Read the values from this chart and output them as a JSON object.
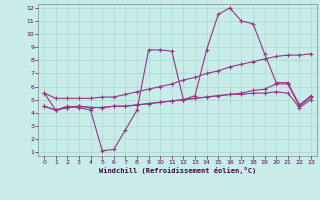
{
  "x_min": 0,
  "x_max": 23,
  "y_min": 1,
  "y_max": 12,
  "background_color": "#c8ece8",
  "grid_color": "#a8d8d0",
  "line_color": "#993388",
  "xlabel": "Windchill (Refroidissement éolien,°C)",
  "lines": [
    {
      "x": [
        0,
        1,
        2,
        3,
        4,
        5,
        6,
        7,
        8,
        9,
        10,
        11,
        12,
        13,
        14,
        15,
        16,
        17,
        18,
        19,
        20,
        21,
        22,
        23
      ],
      "y": [
        5.5,
        4.2,
        4.5,
        4.4,
        4.2,
        1.1,
        1.2,
        2.7,
        4.2,
        8.8,
        8.8,
        8.7,
        5.0,
        5.3,
        8.8,
        11.5,
        12.0,
        11.0,
        10.8,
        8.5,
        6.3,
        6.3,
        4.6,
        5.3
      ]
    },
    {
      "x": [
        0,
        1,
        2,
        3,
        4,
        5,
        6,
        7,
        8,
        9,
        10,
        11,
        12,
        13,
        14,
        15,
        16,
        17,
        18,
        19,
        20,
        21,
        22,
        23
      ],
      "y": [
        5.5,
        5.1,
        5.1,
        5.1,
        5.1,
        5.2,
        5.2,
        5.4,
        5.6,
        5.8,
        6.0,
        6.2,
        6.5,
        6.7,
        7.0,
        7.2,
        7.5,
        7.7,
        7.9,
        8.1,
        8.3,
        8.4,
        8.4,
        8.5
      ]
    },
    {
      "x": [
        0,
        1,
        2,
        3,
        4,
        5,
        6,
        7,
        8,
        9,
        10,
        11,
        12,
        13,
        14,
        15,
        16,
        17,
        18,
        19,
        20,
        21,
        22,
        23
      ],
      "y": [
        4.5,
        4.2,
        4.4,
        4.5,
        4.4,
        4.4,
        4.5,
        4.5,
        4.6,
        4.7,
        4.8,
        4.9,
        5.0,
        5.1,
        5.2,
        5.3,
        5.4,
        5.5,
        5.7,
        5.8,
        6.2,
        6.2,
        4.5,
        5.2
      ]
    },
    {
      "x": [
        0,
        1,
        2,
        3,
        4,
        5,
        6,
        7,
        8,
        9,
        10,
        11,
        12,
        13,
        14,
        15,
        16,
        17,
        18,
        19,
        20,
        21,
        22,
        23
      ],
      "y": [
        4.5,
        4.2,
        4.4,
        4.5,
        4.4,
        4.4,
        4.5,
        4.5,
        4.6,
        4.7,
        4.8,
        4.9,
        5.0,
        5.1,
        5.2,
        5.3,
        5.4,
        5.4,
        5.5,
        5.5,
        5.6,
        5.5,
        4.4,
        5.0
      ]
    }
  ]
}
